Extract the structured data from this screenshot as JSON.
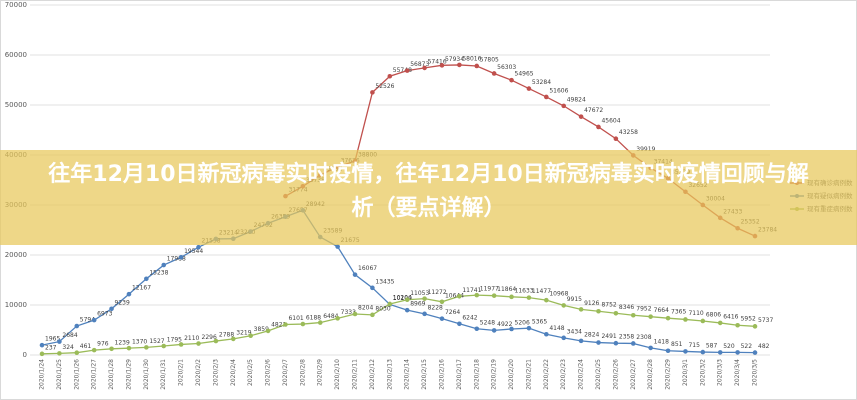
{
  "banner_title": "往年12月10日新冠病毒实时疫情，往年12月10日新冠病毒实时疫情回顾与解析（要点详解）",
  "chart_data": {
    "type": "line",
    "categories": [
      "2020/1/24",
      "2020/1/25",
      "2020/1/26",
      "2020/1/27",
      "2020/1/28",
      "2020/1/29",
      "2020/1/30",
      "2020/1/31",
      "2020/2/1",
      "2020/2/2",
      "2020/2/3",
      "2020/2/4",
      "2020/2/5",
      "2020/2/6",
      "2020/2/7",
      "2020/2/8",
      "2020/2/9",
      "2020/2/10",
      "2020/2/11",
      "2020/2/12",
      "2020/2/13",
      "2020/2/14",
      "2020/2/15",
      "2020/2/16",
      "2020/2/17",
      "2020/2/18",
      "2020/2/19",
      "2020/2/20",
      "2020/2/21",
      "2020/2/22",
      "2020/2/23",
      "2020/2/24",
      "2020/2/25",
      "2020/2/26",
      "2020/2/27",
      "2020/2/28",
      "2020/2/29",
      "2020/3/1",
      "2020/3/2",
      "2020/3/3",
      "2020/3/4",
      "2020/3/5"
    ],
    "series": [
      {
        "name": "现有确诊病例数",
        "color": "#c0504d",
        "values": [
          null,
          null,
          null,
          null,
          null,
          null,
          null,
          null,
          null,
          null,
          null,
          null,
          null,
          null,
          31774,
          33738,
          35982,
          37626,
          38800,
          52526,
          55748,
          56873,
          57416,
          57934,
          58016,
          57805,
          56303,
          54965,
          53284,
          51606,
          49824,
          47672,
          45604,
          43258,
          39919,
          37414,
          35329,
          32652,
          30004,
          27433,
          25352,
          23784
        ]
      },
      {
        "name": "现有疑似病例数",
        "color": "#4f81bd",
        "values": [
          1965,
          2684,
          5794,
          6973,
          9239,
          12167,
          15238,
          17988,
          19544,
          21558,
          23214,
          23260,
          24702,
          26359,
          27657,
          28942,
          23589,
          21675,
          16067,
          13435,
          10109,
          8969,
          8228,
          7264,
          6242,
          5248,
          4922,
          5206,
          5365,
          4148,
          3434,
          2824,
          2491,
          2358,
          2308,
          1418,
          851,
          715,
          587,
          520,
          522,
          482
        ]
      },
      {
        "name": "现有重症病例数",
        "color": "#9bbb59",
        "values": [
          237,
          324,
          461,
          976,
          1239,
          1370,
          1527,
          1795,
          2110,
          2296,
          2788,
          3219,
          3859,
          4821,
          6101,
          6188,
          6484,
          7333,
          8204,
          8030,
          10204,
          11053,
          11272,
          10644,
          11741,
          11977,
          11864,
          11633,
          11477,
          10968,
          9915,
          9126,
          8752,
          8346,
          7952,
          7664,
          7365,
          7110,
          6806,
          6416,
          5952,
          5737
        ]
      }
    ],
    "ylim": [
      0,
      70000
    ],
    "yticks": [
      0,
      10000,
      20000,
      30000,
      40000,
      50000,
      60000,
      70000
    ],
    "grid": true,
    "legend": "right"
  }
}
